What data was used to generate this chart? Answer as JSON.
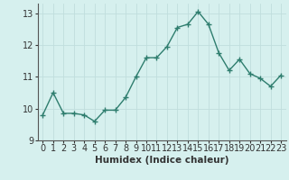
{
  "x": [
    0,
    1,
    2,
    3,
    4,
    5,
    6,
    7,
    8,
    9,
    10,
    11,
    12,
    13,
    14,
    15,
    16,
    17,
    18,
    19,
    20,
    21,
    22,
    23
  ],
  "y": [
    9.8,
    10.5,
    9.85,
    9.85,
    9.8,
    9.6,
    9.95,
    9.95,
    10.35,
    11.0,
    11.6,
    11.6,
    11.95,
    12.55,
    12.65,
    13.05,
    12.65,
    11.75,
    11.2,
    11.55,
    11.1,
    10.95,
    10.7,
    11.05
  ],
  "xlabel": "Humidex (Indice chaleur)",
  "ylim": [
    9,
    13.3
  ],
  "xlim": [
    -0.5,
    23.5
  ],
  "bg_color": "#d6f0ee",
  "grid_color": "#c0dedd",
  "line_color": "#2e7d6e",
  "marker": "+",
  "marker_size": 4,
  "line_width": 1.0,
  "yticks": [
    9,
    10,
    11,
    12,
    13
  ],
  "xtick_labels": [
    "0",
    "1",
    "2",
    "3",
    "4",
    "5",
    "6",
    "7",
    "8",
    "9",
    "10",
    "11",
    "12",
    "13",
    "14",
    "15",
    "16",
    "17",
    "18",
    "19",
    "20",
    "21",
    "22",
    "23"
  ],
  "xlabel_fontsize": 7.5,
  "tick_fontsize": 7,
  "marker_color": "#2e7d6e"
}
